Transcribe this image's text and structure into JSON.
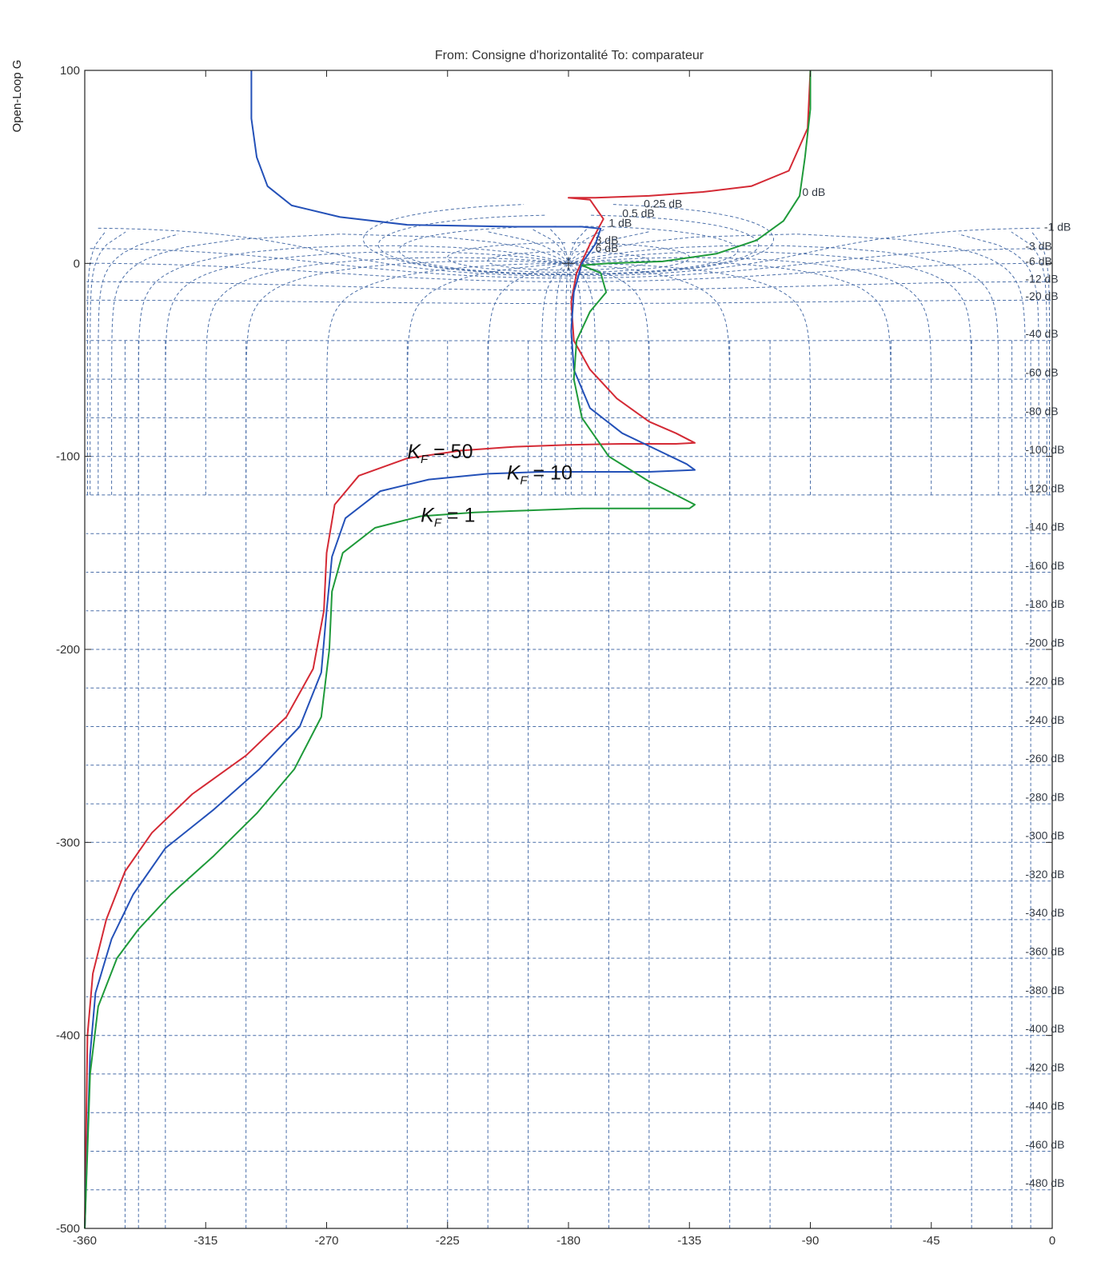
{
  "chart_data": {
    "type": "line",
    "title": "From: Consigne d'horizontalité  To: comparateur",
    "ylabel": "Open-Loop G",
    "xlim": [
      -360,
      0
    ],
    "ylim": [
      -500,
      100
    ],
    "xticks": [
      -360,
      -315,
      -270,
      -225,
      -180,
      -135,
      -90,
      -45,
      0
    ],
    "yticks": [
      -500,
      -400,
      -300,
      -200,
      -100,
      0,
      100
    ],
    "grid": "nichols",
    "colors": {
      "kf50": "#d42a35",
      "kf10": "#2451b8",
      "kf1": "#1f9a3a",
      "grid": "#4a6ea8"
    },
    "isogain_labels": [
      "0 dB",
      "0.25 dB",
      "0.5 dB",
      "1 dB",
      "-1 dB",
      "3 dB",
      "-3 dB",
      "6 dB",
      "-6 dB",
      "-12 dB",
      "-20 dB",
      "-40 dB",
      "-60 dB",
      "-80 dB",
      "-100 dB",
      "-120 dB",
      "-140 dB",
      "-160 dB",
      "-180 dB",
      "-200 dB",
      "-220 dB",
      "-240 dB",
      "-260 dB",
      "-280 dB",
      "-300 dB",
      "-320 dB",
      "-340 dB",
      "-360 dB",
      "-380 dB",
      "-400 dB",
      "-420 dB",
      "-440 dB",
      "-460 dB",
      "-480 dB"
    ],
    "series": [
      {
        "name": "K_F = 50",
        "label_main": "K",
        "label_sub": "F",
        "label_value": " = 50",
        "color": "#d42a35",
        "points": [
          [
            -360,
            -500
          ],
          [
            -359,
            -400
          ],
          [
            -357,
            -368
          ],
          [
            -352,
            -340
          ],
          [
            -345,
            -315
          ],
          [
            -335,
            -295
          ],
          [
            -320,
            -275
          ],
          [
            -300,
            -255
          ],
          [
            -285,
            -235
          ],
          [
            -275,
            -210
          ],
          [
            -271,
            -180
          ],
          [
            -270,
            -150
          ],
          [
            -267,
            -125
          ],
          [
            -258,
            -110
          ],
          [
            -240,
            -101
          ],
          [
            -220,
            -97
          ],
          [
            -200,
            -95
          ],
          [
            -180,
            -94
          ],
          [
            -160,
            -93.5
          ],
          [
            -140,
            -93.5
          ],
          [
            -133,
            -93
          ],
          [
            -140,
            -88
          ],
          [
            -150,
            -82
          ],
          [
            -162,
            -70
          ],
          [
            -172,
            -55
          ],
          [
            -178,
            -40
          ],
          [
            -179,
            -20
          ],
          [
            -177,
            -5
          ],
          [
            -172,
            10
          ],
          [
            -167,
            23
          ],
          [
            -172,
            33
          ],
          [
            -180,
            34
          ],
          [
            -170,
            34
          ],
          [
            -150,
            35
          ],
          [
            -130,
            37
          ],
          [
            -112,
            40
          ],
          [
            -98,
            48
          ],
          [
            -91,
            70
          ],
          [
            -90,
            100
          ]
        ]
      },
      {
        "name": "K_F = 10",
        "label_main": "K",
        "label_sub": "F",
        "label_value": " = 10",
        "color": "#2451b8",
        "points": [
          [
            -360,
            -500
          ],
          [
            -358,
            -410
          ],
          [
            -356,
            -378
          ],
          [
            -350,
            -350
          ],
          [
            -342,
            -327
          ],
          [
            -330,
            -303
          ],
          [
            -312,
            -283
          ],
          [
            -295,
            -262
          ],
          [
            -280,
            -240
          ],
          [
            -272,
            -212
          ],
          [
            -270,
            -180
          ],
          [
            -268,
            -152
          ],
          [
            -263,
            -132
          ],
          [
            -250,
            -118
          ],
          [
            -232,
            -112
          ],
          [
            -210,
            -109
          ],
          [
            -190,
            -108
          ],
          [
            -170,
            -108
          ],
          [
            -150,
            -108
          ],
          [
            -133,
            -107
          ],
          [
            -136,
            -104
          ],
          [
            -148,
            -96
          ],
          [
            -160,
            -88
          ],
          [
            -172,
            -75
          ],
          [
            -178,
            -55
          ],
          [
            -179,
            -35
          ],
          [
            -178,
            -15
          ],
          [
            -175,
            0
          ],
          [
            -170,
            10
          ],
          [
            -168,
            18
          ],
          [
            -175,
            19
          ],
          [
            -200,
            19
          ],
          [
            -240,
            20
          ],
          [
            -265,
            24
          ],
          [
            -283,
            30
          ],
          [
            -292,
            40
          ],
          [
            -296,
            55
          ],
          [
            -298,
            75
          ],
          [
            -298,
            100
          ]
        ]
      },
      {
        "name": "K_F = 1",
        "label_main": "K",
        "label_sub": "F",
        "label_value": " = 1",
        "color": "#1f9a3a",
        "points": [
          [
            -360,
            -500
          ],
          [
            -358,
            -420
          ],
          [
            -355,
            -385
          ],
          [
            -348,
            -360
          ],
          [
            -340,
            -345
          ],
          [
            -328,
            -327
          ],
          [
            -312,
            -307
          ],
          [
            -296,
            -285
          ],
          [
            -282,
            -262
          ],
          [
            -272,
            -235
          ],
          [
            -269,
            -200
          ],
          [
            -268,
            -170
          ],
          [
            -264,
            -150
          ],
          [
            -252,
            -137
          ],
          [
            -235,
            -131
          ],
          [
            -215,
            -129
          ],
          [
            -195,
            -128
          ],
          [
            -175,
            -127
          ],
          [
            -155,
            -127
          ],
          [
            -135,
            -127
          ],
          [
            -133,
            -125
          ],
          [
            -140,
            -120
          ],
          [
            -150,
            -113
          ],
          [
            -165,
            -100
          ],
          [
            -175,
            -80
          ],
          [
            -178,
            -60
          ],
          [
            -177,
            -40
          ],
          [
            -172,
            -25
          ],
          [
            -166,
            -15
          ],
          [
            -168,
            -5
          ],
          [
            -175,
            -1
          ],
          [
            -165,
            0
          ],
          [
            -145,
            1
          ],
          [
            -125,
            5
          ],
          [
            -110,
            12
          ],
          [
            -100,
            22
          ],
          [
            -94,
            35
          ],
          [
            -92,
            55
          ],
          [
            -90,
            80
          ],
          [
            -90,
            100
          ]
        ]
      }
    ]
  }
}
